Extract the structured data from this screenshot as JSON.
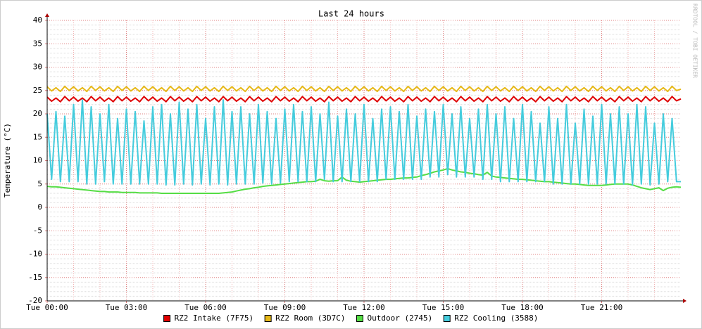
{
  "chart_data": {
    "type": "line",
    "title": "Last 24 hours",
    "y_label": "Temperature (°C)",
    "watermark": "RRDTOOL / TOBI OETIKER",
    "x": [
      0,
      10,
      20,
      30,
      40,
      50,
      60,
      70,
      80,
      90,
      100,
      110,
      120,
      130,
      140,
      150,
      160,
      170,
      180,
      190,
      200,
      210,
      220,
      230,
      240,
      250,
      260,
      270,
      280,
      290,
      300,
      310,
      320,
      330,
      340,
      350,
      360,
      370,
      380,
      390,
      400,
      410,
      420,
      430,
      440,
      450,
      460,
      470,
      480,
      490,
      500,
      510,
      520,
      530,
      540,
      550,
      560,
      570,
      580,
      590,
      600,
      610,
      620,
      630,
      640,
      650,
      660,
      670,
      680,
      690,
      700,
      710,
      720,
      730,
      740,
      750,
      760,
      770,
      780,
      790,
      800,
      810,
      820,
      830,
      840,
      850,
      860,
      870,
      880,
      890,
      900,
      910,
      920,
      930,
      940,
      950,
      960,
      970,
      980,
      990,
      1000,
      1010,
      1020,
      1030,
      1040,
      1050,
      1060,
      1070,
      1080,
      1090,
      1100,
      1110,
      1120,
      1130,
      1140,
      1150,
      1160,
      1170,
      1180,
      1190,
      1200,
      1210,
      1220,
      1230,
      1240,
      1250,
      1260,
      1270,
      1280,
      1290,
      1300,
      1310,
      1320,
      1330,
      1340,
      1350,
      1360,
      1370,
      1380,
      1390,
      1400,
      1410,
      1420,
      1430,
      1440
    ],
    "xlim": [
      0,
      1440
    ],
    "xticks": [
      {
        "value": 0,
        "label": "Tue 00:00"
      },
      {
        "value": 180,
        "label": "Tue 03:00"
      },
      {
        "value": 360,
        "label": "Tue 06:00"
      },
      {
        "value": 540,
        "label": "Tue 09:00"
      },
      {
        "value": 720,
        "label": "Tue 12:00"
      },
      {
        "value": 900,
        "label": "Tue 15:00"
      },
      {
        "value": 1080,
        "label": "Tue 18:00"
      },
      {
        "value": 1260,
        "label": "Tue 21:00"
      }
    ],
    "ylim": [
      -20,
      40
    ],
    "yticks": [
      -20,
      -15,
      -10,
      -5,
      0,
      5,
      10,
      15,
      20,
      25,
      30,
      35,
      40
    ],
    "grid": true,
    "series": [
      {
        "name": "RZ2 Intake (7F75)",
        "color": "#e00000",
        "values": [
          23.6,
          22.7,
          23.4,
          22.6,
          23.7,
          22.8,
          23.6,
          22.7,
          23.4,
          22.6,
          23.7,
          22.8,
          23.6,
          22.7,
          23.4,
          22.6,
          23.7,
          22.8,
          23.6,
          22.7,
          23.4,
          22.6,
          23.7,
          22.8,
          23.6,
          22.7,
          23.4,
          22.6,
          23.7,
          22.8,
          23.6,
          22.7,
          23.4,
          22.6,
          23.7,
          22.8,
          23.6,
          22.7,
          23.4,
          22.6,
          23.7,
          22.8,
          23.6,
          22.7,
          23.4,
          22.6,
          23.7,
          22.8,
          23.6,
          22.7,
          23.4,
          22.6,
          23.7,
          22.8,
          23.6,
          22.7,
          23.4,
          22.6,
          23.7,
          22.8,
          23.6,
          22.7,
          23.4,
          22.6,
          23.7,
          22.8,
          23.6,
          22.7,
          23.4,
          22.6,
          23.7,
          22.8,
          23.6,
          22.7,
          23.4,
          22.6,
          23.7,
          22.8,
          23.6,
          22.7,
          23.4,
          22.6,
          23.7,
          22.8,
          23.6,
          22.7,
          23.4,
          22.6,
          23.7,
          22.8,
          23.6,
          22.7,
          23.4,
          22.6,
          23.7,
          22.8,
          23.6,
          22.7,
          23.4,
          22.6,
          23.7,
          22.8,
          23.6,
          22.7,
          23.4,
          22.6,
          23.7,
          22.8,
          23.6,
          22.7,
          23.4,
          22.6,
          23.7,
          22.8,
          23.6,
          22.7,
          23.4,
          22.6,
          23.7,
          22.8,
          23.6,
          22.7,
          23.4,
          22.6,
          23.7,
          22.8,
          23.6,
          22.7,
          23.4,
          22.6,
          23.7,
          22.8,
          23.6,
          22.7,
          23.4,
          22.6,
          23.7,
          22.8,
          23.6,
          22.7,
          23.4,
          22.6,
          23.7,
          22.8,
          23.2
        ]
      },
      {
        "name": "RZ2 Room (3D7C)",
        "color": "#e6b818",
        "values": [
          25.8,
          24.9,
          25.6,
          24.8,
          25.9,
          25.0,
          25.8,
          24.9,
          25.6,
          24.8,
          25.9,
          25.0,
          25.8,
          24.9,
          25.6,
          24.8,
          25.9,
          25.0,
          25.8,
          24.9,
          25.6,
          24.8,
          25.9,
          25.0,
          25.8,
          24.9,
          25.6,
          24.8,
          25.9,
          25.0,
          25.8,
          24.9,
          25.6,
          24.8,
          25.9,
          25.0,
          25.8,
          24.9,
          25.6,
          24.8,
          25.9,
          25.0,
          25.8,
          24.9,
          25.6,
          24.8,
          25.9,
          25.0,
          25.8,
          24.9,
          25.6,
          24.8,
          25.9,
          25.0,
          25.8,
          24.9,
          25.6,
          24.8,
          25.9,
          25.0,
          25.8,
          24.9,
          25.6,
          24.8,
          25.9,
          25.0,
          25.8,
          24.9,
          25.6,
          24.8,
          25.9,
          25.0,
          25.8,
          24.9,
          25.6,
          24.8,
          25.9,
          25.0,
          25.8,
          24.9,
          25.6,
          24.8,
          25.9,
          25.0,
          25.8,
          24.9,
          25.6,
          24.8,
          25.9,
          25.0,
          25.8,
          24.9,
          25.6,
          24.8,
          25.9,
          25.0,
          25.8,
          24.9,
          25.6,
          24.8,
          25.9,
          25.0,
          25.8,
          24.9,
          25.6,
          24.8,
          25.9,
          25.0,
          25.8,
          24.9,
          25.6,
          24.8,
          25.9,
          25.0,
          25.8,
          24.9,
          25.6,
          24.8,
          25.9,
          25.0,
          25.8,
          24.9,
          25.6,
          24.8,
          25.9,
          25.0,
          25.8,
          24.9,
          25.6,
          24.8,
          25.9,
          25.0,
          25.8,
          24.9,
          25.6,
          24.8,
          25.9,
          25.0,
          25.8,
          24.9,
          25.6,
          24.8,
          25.9,
          25.0,
          25.3
        ]
      },
      {
        "name": "Outdoor (2745)",
        "color": "#55dd44",
        "values": [
          4.5,
          4.4,
          4.4,
          4.3,
          4.2,
          4.1,
          4.0,
          3.9,
          3.8,
          3.7,
          3.6,
          3.5,
          3.4,
          3.4,
          3.3,
          3.3,
          3.3,
          3.2,
          3.2,
          3.2,
          3.2,
          3.1,
          3.1,
          3.1,
          3.1,
          3.1,
          3.0,
          3.0,
          3.0,
          3.0,
          3.0,
          3.0,
          3.0,
          3.0,
          3.0,
          3.0,
          3.0,
          3.0,
          3.0,
          3.0,
          3.1,
          3.2,
          3.3,
          3.5,
          3.7,
          3.9,
          4.0,
          4.2,
          4.3,
          4.5,
          4.6,
          4.7,
          4.8,
          4.9,
          5.0,
          5.1,
          5.2,
          5.3,
          5.4,
          5.5,
          5.5,
          5.6,
          6.0,
          5.7,
          5.6,
          5.7,
          5.7,
          6.5,
          5.8,
          5.6,
          5.5,
          5.4,
          5.5,
          5.6,
          5.7,
          5.8,
          5.9,
          6.0,
          6.0,
          6.1,
          6.2,
          6.3,
          6.3,
          6.4,
          6.5,
          6.8,
          7.0,
          7.3,
          7.6,
          7.8,
          8.0,
          8.3,
          8.0,
          7.8,
          7.6,
          7.5,
          7.3,
          7.2,
          7.0,
          6.9,
          7.5,
          6.7,
          6.5,
          6.4,
          6.3,
          6.2,
          6.1,
          6.0,
          6.0,
          5.9,
          5.8,
          5.7,
          5.6,
          5.5,
          5.5,
          5.4,
          5.3,
          5.2,
          5.1,
          5.0,
          5.0,
          4.9,
          4.8,
          4.7,
          4.7,
          4.7,
          4.7,
          4.8,
          4.9,
          5.0,
          5.0,
          5.0,
          5.0,
          4.8,
          4.5,
          4.2,
          4.0,
          3.8,
          4.0,
          4.2,
          3.6,
          4.1,
          4.3,
          4.4,
          4.3
        ]
      },
      {
        "name": "RZ2 Cooling (3588)",
        "color": "#44ccdd",
        "values": [
          20.0,
          6.0,
          20.5,
          5.5,
          19.5,
          5.5,
          22.0,
          5.5,
          23.0,
          5.0,
          21.5,
          5.0,
          20.0,
          5.5,
          22.0,
          5.0,
          19.0,
          5.0,
          21.0,
          5.0,
          20.5,
          5.0,
          18.5,
          5.0,
          21.5,
          5.0,
          22.0,
          4.8,
          20.0,
          4.8,
          22.5,
          5.0,
          21.0,
          4.8,
          22.0,
          5.0,
          19.0,
          4.8,
          21.5,
          5.0,
          23.0,
          4.8,
          20.5,
          5.0,
          21.5,
          5.0,
          20.0,
          5.0,
          22.0,
          5.2,
          20.5,
          5.0,
          19.0,
          5.2,
          21.0,
          5.5,
          22.0,
          5.5,
          20.5,
          5.5,
          21.5,
          5.5,
          20.0,
          6.0,
          22.5,
          5.5,
          19.5,
          5.5,
          21.0,
          5.5,
          20.0,
          5.5,
          22.0,
          5.5,
          19.0,
          5.5,
          21.0,
          6.0,
          21.5,
          6.0,
          20.5,
          6.0,
          22.0,
          6.0,
          19.5,
          6.0,
          21.0,
          6.5,
          20.5,
          6.5,
          22.0,
          7.0,
          20.0,
          6.5,
          21.5,
          6.5,
          19.0,
          6.5,
          21.0,
          6.0,
          22.0,
          6.0,
          20.0,
          5.5,
          21.5,
          5.5,
          19.0,
          5.5,
          22.0,
          5.5,
          20.5,
          5.5,
          18.0,
          5.5,
          21.5,
          5.0,
          19.0,
          5.0,
          22.0,
          5.0,
          18.0,
          5.0,
          21.0,
          5.0,
          19.5,
          5.0,
          22.0,
          5.0,
          20.0,
          5.0,
          21.5,
          5.0,
          20.0,
          4.8,
          22.0,
          5.0,
          21.5,
          4.8,
          18.0,
          5.0,
          20.0,
          5.5,
          19.0,
          5.5,
          5.5
        ]
      }
    ]
  }
}
